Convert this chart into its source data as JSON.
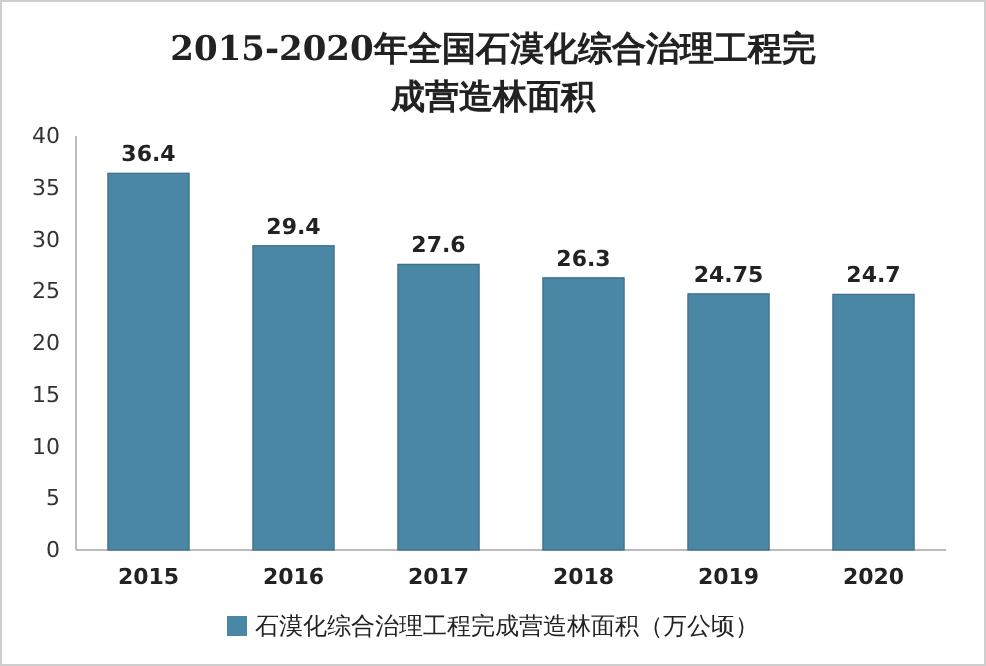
{
  "chart_data": {
    "type": "bar",
    "title": "2015-2020年全国石漠化综合治理工程完成营造林面积",
    "categories": [
      "2015",
      "2016",
      "2017",
      "2018",
      "2019",
      "2020"
    ],
    "series": [
      {
        "name": "石漠化综合治理工程完成营造林面积（万公顷）",
        "color": "#4a87a5",
        "values": [
          36.4,
          29.4,
          27.6,
          26.3,
          24.75,
          24.7
        ]
      }
    ],
    "ylim": [
      0,
      40
    ],
    "yticks": [
      0,
      5,
      10,
      15,
      20,
      25,
      30,
      35,
      40
    ],
    "grid": false,
    "legend": "bottom",
    "data_labels": true
  }
}
